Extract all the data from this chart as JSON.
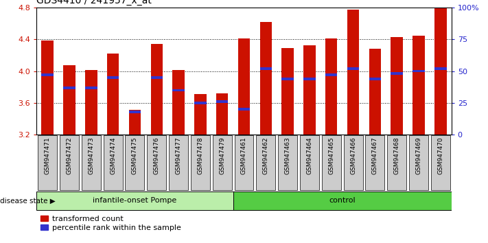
{
  "title": "GDS4410 / 241957_x_at",
  "samples": [
    "GSM947471",
    "GSM947472",
    "GSM947473",
    "GSM947474",
    "GSM947475",
    "GSM947476",
    "GSM947477",
    "GSM947478",
    "GSM947479",
    "GSM947461",
    "GSM947462",
    "GSM947463",
    "GSM947464",
    "GSM947465",
    "GSM947466",
    "GSM947467",
    "GSM947468",
    "GSM947469",
    "GSM947470"
  ],
  "bar_tops": [
    4.38,
    4.07,
    4.01,
    4.22,
    3.51,
    4.34,
    4.01,
    3.71,
    3.72,
    4.41,
    4.62,
    4.29,
    4.32,
    4.41,
    4.77,
    4.28,
    4.43,
    4.44,
    4.8
  ],
  "blue_marker_pct": [
    47,
    37,
    37,
    45,
    18,
    45,
    35,
    25,
    26,
    20,
    52,
    44,
    44,
    47,
    52,
    44,
    48,
    50,
    52
  ],
  "bar_bottom": 3.2,
  "ylim_left": [
    3.2,
    4.8
  ],
  "ylim_right": [
    0,
    100
  ],
  "yticks_left": [
    3.2,
    3.6,
    4.0,
    4.4,
    4.8
  ],
  "yticks_right": [
    0,
    25,
    50,
    75,
    100
  ],
  "ytick_labels_right": [
    "0",
    "25",
    "50",
    "75",
    "100%"
  ],
  "bar_color": "#cc1100",
  "blue_color": "#3333cc",
  "group1_label": "infantile-onset Pompe",
  "group2_label": "control",
  "group1_count": 9,
  "group2_count": 10,
  "group1_bg": "#bbeeaa",
  "group2_bg": "#55cc44",
  "disease_label": "disease state",
  "legend1": "transformed count",
  "legend2": "percentile rank within the sample",
  "tick_color_left": "#cc1100",
  "tick_color_right": "#2222cc",
  "bar_width": 0.55,
  "xlabel_bg": "#cccccc"
}
